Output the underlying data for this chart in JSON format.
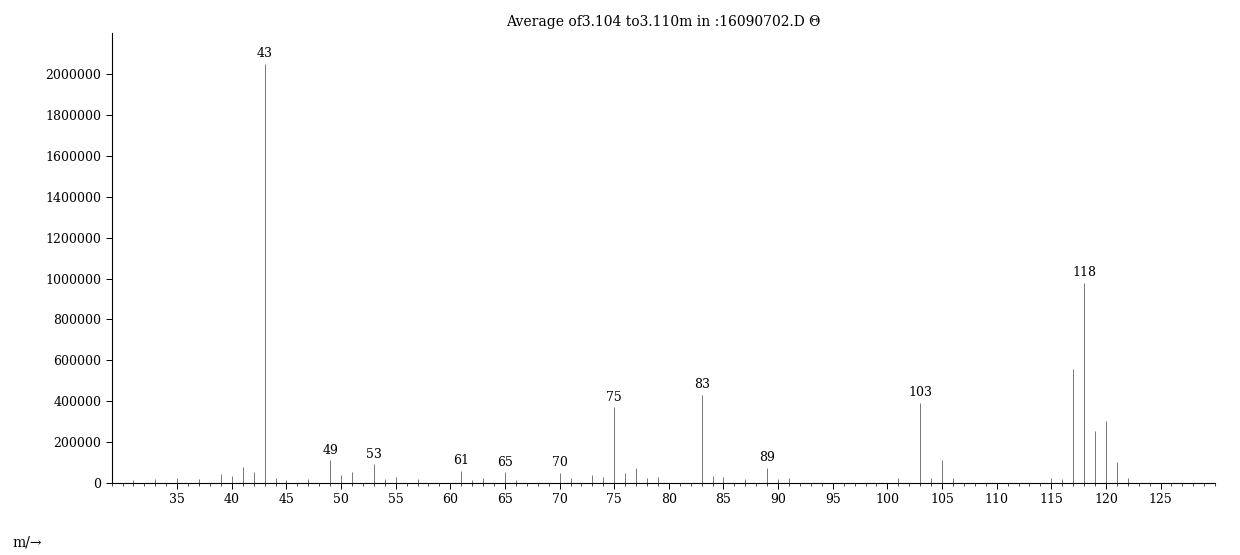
{
  "title": "Average of3.104 to3.110m in :16090702.D Θ",
  "xlabel_text": "m/→",
  "xlim": [
    29,
    130
  ],
  "ylim": [
    0,
    2200000
  ],
  "xticks": [
    35,
    40,
    45,
    50,
    55,
    60,
    65,
    70,
    75,
    80,
    85,
    90,
    95,
    100,
    105,
    110,
    115,
    120,
    125
  ],
  "yticks": [
    0,
    200000,
    400000,
    600000,
    800000,
    1000000,
    1200000,
    1400000,
    1600000,
    1800000,
    2000000
  ],
  "background_color": "#ffffff",
  "bar_color": "#777777",
  "title_fontsize": 10,
  "tick_fontsize": 9,
  "peaks": [
    {
      "mz": 29,
      "intensity": 18000,
      "label": null
    },
    {
      "mz": 31,
      "intensity": 15000,
      "label": null
    },
    {
      "mz": 33,
      "intensity": 18000,
      "label": null
    },
    {
      "mz": 35,
      "intensity": 25000,
      "label": null
    },
    {
      "mz": 37,
      "intensity": 20000,
      "label": null
    },
    {
      "mz": 39,
      "intensity": 45000,
      "label": null
    },
    {
      "mz": 40,
      "intensity": 35000,
      "label": null
    },
    {
      "mz": 41,
      "intensity": 80000,
      "label": null
    },
    {
      "mz": 42,
      "intensity": 55000,
      "label": null
    },
    {
      "mz": 43,
      "intensity": 2050000,
      "label": "43"
    },
    {
      "mz": 44,
      "intensity": 22000,
      "label": null
    },
    {
      "mz": 45,
      "intensity": 15000,
      "label": null
    },
    {
      "mz": 47,
      "intensity": 18000,
      "label": null
    },
    {
      "mz": 49,
      "intensity": 110000,
      "label": "49"
    },
    {
      "mz": 50,
      "intensity": 38000,
      "label": null
    },
    {
      "mz": 51,
      "intensity": 55000,
      "label": null
    },
    {
      "mz": 53,
      "intensity": 90000,
      "label": "53"
    },
    {
      "mz": 54,
      "intensity": 18000,
      "label": null
    },
    {
      "mz": 55,
      "intensity": 28000,
      "label": null
    },
    {
      "mz": 57,
      "intensity": 18000,
      "label": null
    },
    {
      "mz": 61,
      "intensity": 58000,
      "label": "61"
    },
    {
      "mz": 62,
      "intensity": 15000,
      "label": null
    },
    {
      "mz": 63,
      "intensity": 22000,
      "label": null
    },
    {
      "mz": 65,
      "intensity": 52000,
      "label": "65"
    },
    {
      "mz": 66,
      "intensity": 12000,
      "label": null
    },
    {
      "mz": 70,
      "intensity": 48000,
      "label": "70"
    },
    {
      "mz": 71,
      "intensity": 22000,
      "label": null
    },
    {
      "mz": 73,
      "intensity": 38000,
      "label": null
    },
    {
      "mz": 74,
      "intensity": 28000,
      "label": null
    },
    {
      "mz": 75,
      "intensity": 370000,
      "label": "75"
    },
    {
      "mz": 76,
      "intensity": 48000,
      "label": null
    },
    {
      "mz": 77,
      "intensity": 72000,
      "label": null
    },
    {
      "mz": 78,
      "intensity": 22000,
      "label": null
    },
    {
      "mz": 79,
      "intensity": 28000,
      "label": null
    },
    {
      "mz": 83,
      "intensity": 430000,
      "label": "83"
    },
    {
      "mz": 84,
      "intensity": 32000,
      "label": null
    },
    {
      "mz": 85,
      "intensity": 28000,
      "label": null
    },
    {
      "mz": 87,
      "intensity": 18000,
      "label": null
    },
    {
      "mz": 89,
      "intensity": 72000,
      "label": "89"
    },
    {
      "mz": 90,
      "intensity": 18000,
      "label": null
    },
    {
      "mz": 91,
      "intensity": 22000,
      "label": null
    },
    {
      "mz": 101,
      "intensity": 22000,
      "label": null
    },
    {
      "mz": 103,
      "intensity": 390000,
      "label": "103"
    },
    {
      "mz": 104,
      "intensity": 22000,
      "label": null
    },
    {
      "mz": 105,
      "intensity": 112000,
      "label": null
    },
    {
      "mz": 106,
      "intensity": 22000,
      "label": null
    },
    {
      "mz": 115,
      "intensity": 22000,
      "label": null
    },
    {
      "mz": 116,
      "intensity": 18000,
      "label": null
    },
    {
      "mz": 117,
      "intensity": 555000,
      "label": null
    },
    {
      "mz": 118,
      "intensity": 980000,
      "label": "118"
    },
    {
      "mz": 119,
      "intensity": 255000,
      "label": null
    },
    {
      "mz": 120,
      "intensity": 305000,
      "label": null
    },
    {
      "mz": 121,
      "intensity": 100000,
      "label": null
    },
    {
      "mz": 122,
      "intensity": 22000,
      "label": null
    }
  ]
}
